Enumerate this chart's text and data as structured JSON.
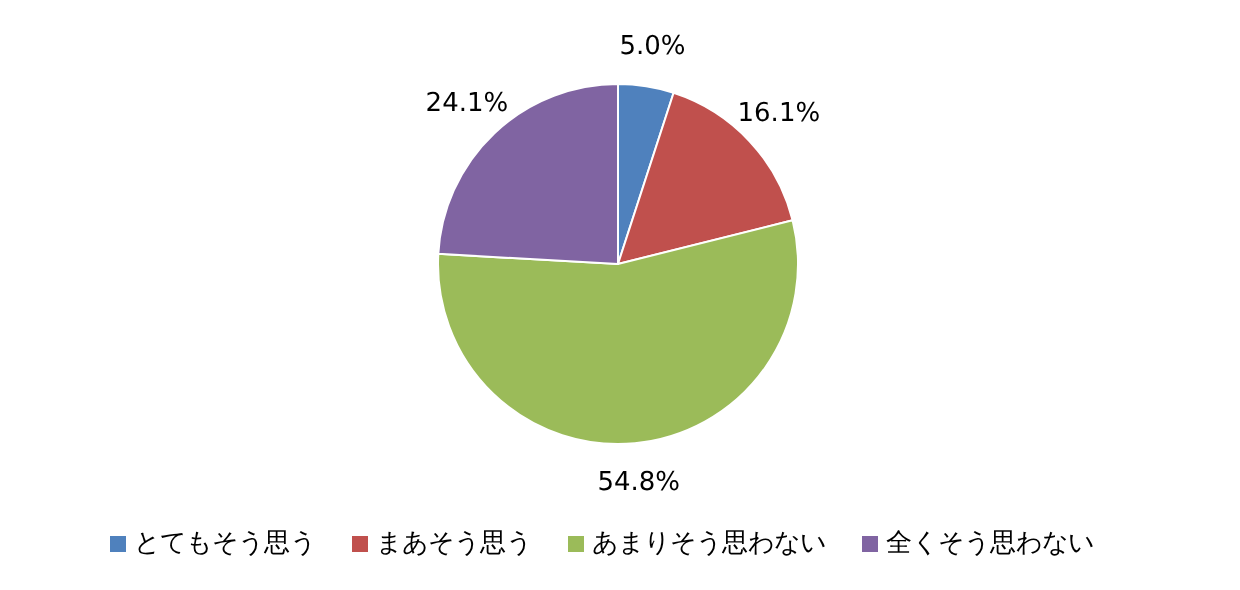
{
  "chart_data": {
    "type": "pie",
    "categories": [
      "とてもそう思う",
      "まあそう思う",
      "あまりそう思わない",
      "全くそう思わない"
    ],
    "values": [
      5.0,
      16.1,
      54.8,
      24.1
    ],
    "colors": [
      "#4f81bd",
      "#c0504d",
      "#9bbb59",
      "#8064a2"
    ],
    "value_labels": [
      "5.0%",
      "16.1%",
      "54.8%",
      "24.1%"
    ],
    "legend": "bottom"
  }
}
